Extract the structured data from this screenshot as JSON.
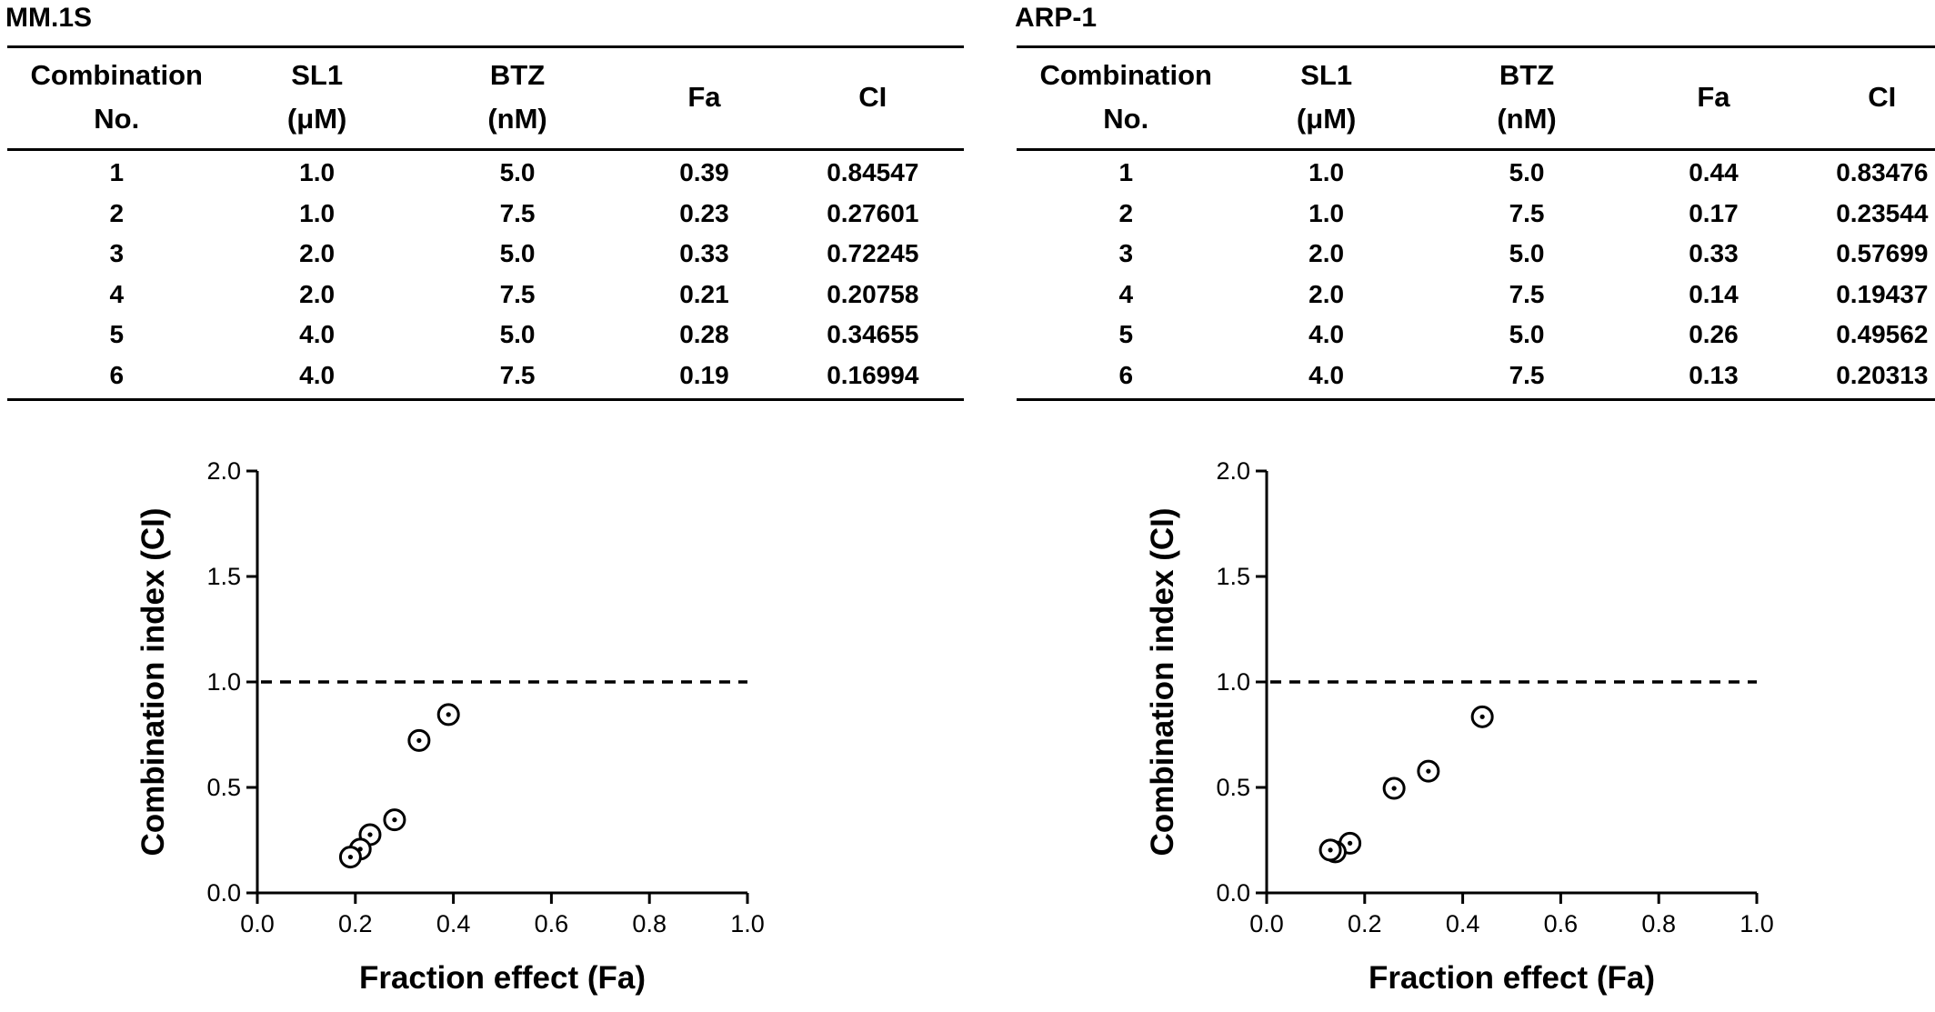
{
  "panels": [
    {
      "title": "MM.1S",
      "table": {
        "headers": [
          [
            "Combination",
            "No."
          ],
          [
            "SL1",
            "(μM)"
          ],
          [
            "BTZ",
            "(nM)"
          ],
          [
            "Fa"
          ],
          [
            "CI"
          ]
        ],
        "rows": [
          [
            "1",
            "1.0",
            "5.0",
            "0.39",
            "0.84547"
          ],
          [
            "2",
            "1.0",
            "7.5",
            "0.23",
            "0.27601"
          ],
          [
            "3",
            "2.0",
            "5.0",
            "0.33",
            "0.72245"
          ],
          [
            "4",
            "2.0",
            "7.5",
            "0.21",
            "0.20758"
          ],
          [
            "5",
            "4.0",
            "5.0",
            "0.28",
            "0.34655"
          ],
          [
            "6",
            "4.0",
            "7.5",
            "0.19",
            "0.16994"
          ]
        ]
      }
    },
    {
      "title": "ARP-1",
      "table": {
        "headers": [
          [
            "Combination",
            "No."
          ],
          [
            "SL1",
            "(μM)"
          ],
          [
            "BTZ",
            "(nM)"
          ],
          [
            "Fa"
          ],
          [
            "CI"
          ]
        ],
        "rows": [
          [
            "1",
            "1.0",
            "5.0",
            "0.44",
            "0.83476"
          ],
          [
            "2",
            "1.0",
            "7.5",
            "0.17",
            "0.23544"
          ],
          [
            "3",
            "2.0",
            "5.0",
            "0.33",
            "0.57699"
          ],
          [
            "4",
            "2.0",
            "7.5",
            "0.14",
            "0.19437"
          ],
          [
            "5",
            "4.0",
            "5.0",
            "0.26",
            "0.49562"
          ],
          [
            "6",
            "4.0",
            "7.5",
            "0.13",
            "0.20313"
          ]
        ]
      }
    }
  ],
  "chart_data": [
    {
      "type": "scatter",
      "title": "",
      "xlabel": "Fraction effect (Fa)",
      "ylabel": "Combination index (CI)",
      "xlim": [
        0,
        1.0
      ],
      "ylim": [
        0,
        2.0
      ],
      "xticks": [
        "0.0",
        "0.2",
        "0.4",
        "0.6",
        "0.8",
        "1.0"
      ],
      "yticks": [
        "0.0",
        "0.5",
        "1.0",
        "1.5",
        "2.0"
      ],
      "reference_line": {
        "y": 1.0,
        "style": "dashed"
      },
      "grid": false,
      "points": [
        {
          "x": 0.39,
          "y": 0.84547
        },
        {
          "x": 0.23,
          "y": 0.27601
        },
        {
          "x": 0.33,
          "y": 0.72245
        },
        {
          "x": 0.21,
          "y": 0.20758
        },
        {
          "x": 0.28,
          "y": 0.34655
        },
        {
          "x": 0.19,
          "y": 0.16994
        }
      ]
    },
    {
      "type": "scatter",
      "title": "",
      "xlabel": "Fraction effect (Fa)",
      "ylabel": "Combination index (CI)",
      "xlim": [
        0,
        1.0
      ],
      "ylim": [
        0,
        2.0
      ],
      "xticks": [
        "0.0",
        "0.2",
        "0.4",
        "0.6",
        "0.8",
        "1.0"
      ],
      "yticks": [
        "0.0",
        "0.5",
        "1.0",
        "1.5",
        "2.0"
      ],
      "reference_line": {
        "y": 1.0,
        "style": "dashed"
      },
      "grid": false,
      "points": [
        {
          "x": 0.44,
          "y": 0.83476
        },
        {
          "x": 0.17,
          "y": 0.23544
        },
        {
          "x": 0.33,
          "y": 0.57699
        },
        {
          "x": 0.14,
          "y": 0.19437
        },
        {
          "x": 0.26,
          "y": 0.49562
        },
        {
          "x": 0.13,
          "y": 0.20313
        }
      ]
    }
  ]
}
